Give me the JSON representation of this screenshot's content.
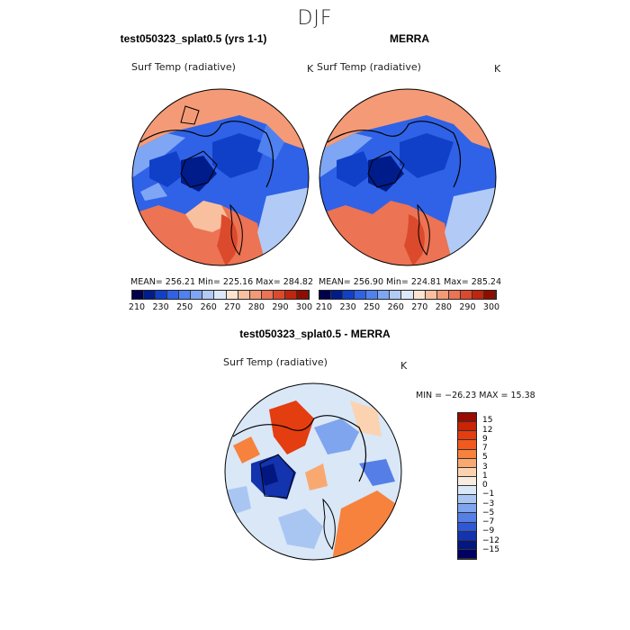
{
  "title": "DJF",
  "panels": {
    "left": {
      "title": "test050323_splat0.5 (yrs 1-1)",
      "var_label": "Surf Temp (radiative)",
      "units": "K",
      "stats": "MEAN= 256.21    Min= 225.16    Max= 284.82"
    },
    "right": {
      "title": "MERRA",
      "var_label": "Surf Temp (radiative)",
      "units": "K",
      "stats": "MEAN= 256.90    Min= 224.81    Max= 285.24"
    },
    "diff": {
      "title": "test050323_splat0.5 - MERRA",
      "var_label": "Surf Temp (radiative)",
      "units": "K",
      "stats": "MIN = −26.23  MAX =  15.38"
    }
  },
  "colorbar_abs": {
    "ticks": [
      "210",
      "230",
      "250",
      "260",
      "270",
      "280",
      "290",
      "300"
    ],
    "colors": [
      "#00004d",
      "#001c8a",
      "#1140c8",
      "#2f62e6",
      "#4f82f0",
      "#7fa6f4",
      "#b1caf6",
      "#dce8f8",
      "#fde4d0",
      "#f9c0a0",
      "#f49a76",
      "#ec7353",
      "#dc4a2d",
      "#c0260f",
      "#8f0d00"
    ]
  },
  "colorbar_diff": {
    "ticks": [
      "15",
      "12",
      "9",
      "7",
      "5",
      "3",
      "1",
      "0",
      "−1",
      "−3",
      "−5",
      "−7",
      "−9",
      "−12",
      "−15"
    ],
    "colors": [
      "#9a0b00",
      "#c82405",
      "#e33d10",
      "#f25a1d",
      "#f7823d",
      "#f9a970",
      "#fcd3b0",
      "#f7ecdf",
      "#d9e7f7",
      "#a9c6f3",
      "#7ea5ee",
      "#557fe6",
      "#2f58d6",
      "#1433ae",
      "#031780",
      "#000060"
    ]
  }
}
